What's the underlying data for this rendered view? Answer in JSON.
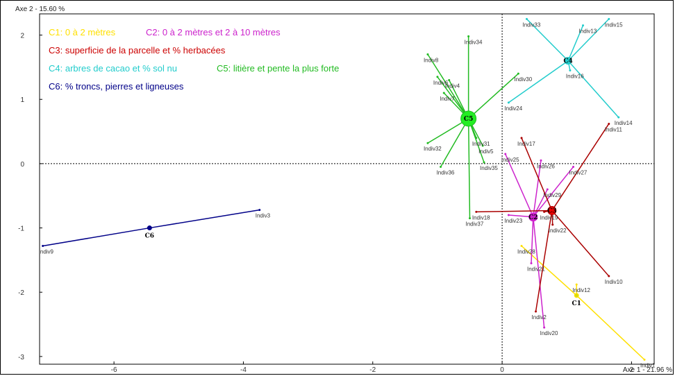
{
  "chart_data": {
    "type": "scatter",
    "xlabel": "Axe 1 - 21.96 %",
    "ylabel": "Axe 2 - 15.60 %",
    "xlim": [
      -7.15,
      2.35
    ],
    "ylim": [
      -3.12,
      2.33
    ],
    "x_ticks": [
      {
        "value": -6,
        "label": "-6"
      },
      {
        "value": -4,
        "label": "-4"
      },
      {
        "value": -2,
        "label": "-2"
      },
      {
        "value": 0,
        "label": "0"
      },
      {
        "value": 2,
        "label": "2"
      }
    ],
    "y_ticks": [
      {
        "value": 2,
        "label": "2"
      },
      {
        "value": 1,
        "label": "1"
      },
      {
        "value": 0,
        "label": "0"
      },
      {
        "value": -1,
        "label": "-1"
      },
      {
        "value": -2,
        "label": "-2"
      },
      {
        "value": -3,
        "label": "-3"
      }
    ],
    "legend": [
      {
        "text": "C1: 0 à 2 mètres",
        "color": "#ffe000"
      },
      {
        "text": "C2: 0 à 2 mètres et 2 à 10 mètres",
        "color": "#cc22cc"
      },
      {
        "text": "C3: superficie de la parcelle et % herbacées",
        "color": "#cc0000"
      },
      {
        "text": "C4: arbres de cacao et % sol nu",
        "color": "#22cccc"
      },
      {
        "text": "C5: litière et pente la plus forte",
        "color": "#22bb22"
      },
      {
        "text": "C6: % troncs, pierres et ligneuses",
        "color": "#000088"
      }
    ],
    "groups": [
      {
        "name": "C1",
        "color": "#ffe000",
        "centroid": [
          1.15,
          -2.05
        ],
        "dot_color": "#dddd00",
        "dot_size": 3,
        "members": [
          {
            "label": "Indiv1",
            "x": 2.2,
            "y": -3.05
          },
          {
            "label": "Indiv12",
            "x": 1.15,
            "y": -1.88
          },
          {
            "label": "Indiv28",
            "x": 0.3,
            "y": -1.28
          }
        ]
      },
      {
        "name": "C2",
        "color": "#cc22cc",
        "centroid": [
          0.48,
          -0.83
        ],
        "dot_color": "#cc22cc",
        "dot_size": 6,
        "members": [
          {
            "label": "Indiv20",
            "x": 0.65,
            "y": -2.55
          },
          {
            "label": "Indiv21",
            "x": 0.45,
            "y": -1.55
          },
          {
            "label": "Indiv23",
            "x": 0.1,
            "y": -0.8
          },
          {
            "label": "Indiv25",
            "x": 0.05,
            "y": 0.15
          },
          {
            "label": "Indiv26",
            "x": 0.6,
            "y": 0.05
          },
          {
            "label": "Indiv27",
            "x": 1.1,
            "y": -0.05
          },
          {
            "label": "Indiv29",
            "x": 0.7,
            "y": -0.4
          }
        ]
      },
      {
        "name": "C3",
        "color": "#aa0000",
        "centroid": [
          0.77,
          -0.73
        ],
        "dot_color": "#ee0000",
        "dot_size": 6,
        "members": [
          {
            "label": "Indiv2",
            "x": 0.52,
            "y": -2.3
          },
          {
            "label": "Indiv10",
            "x": 1.65,
            "y": -1.75
          },
          {
            "label": "Indiv11",
            "x": 1.65,
            "y": 0.62
          },
          {
            "label": "Indiv17",
            "x": 0.3,
            "y": 0.4
          },
          {
            "label": "Indiv18",
            "x": -0.4,
            "y": -0.75
          },
          {
            "label": "Indiv19",
            "x": 0.65,
            "y": -0.75
          },
          {
            "label": "Indiv22",
            "x": 0.78,
            "y": -0.95
          }
        ]
      },
      {
        "name": "C4",
        "color": "#22cccc",
        "centroid": [
          1.02,
          1.6
        ],
        "dot_color": "#22cccc",
        "dot_size": 5,
        "members": [
          {
            "label": "Indiv13",
            "x": 1.25,
            "y": 2.15
          },
          {
            "label": "Indiv14",
            "x": 1.8,
            "y": 0.72
          },
          {
            "label": "Indiv15",
            "x": 1.65,
            "y": 2.25
          },
          {
            "label": "Indiv16",
            "x": 1.05,
            "y": 1.45
          },
          {
            "label": "Indiv24",
            "x": 0.1,
            "y": 0.95
          },
          {
            "label": "Indiv33",
            "x": 0.38,
            "y": 2.25
          }
        ]
      },
      {
        "name": "C5",
        "color": "#22bb22",
        "centroid": [
          -0.52,
          0.7
        ],
        "dot_color": "#22ee22",
        "dot_size": 11,
        "members": [
          {
            "label": "Indiv4",
            "x": -0.82,
            "y": 1.3
          },
          {
            "label": "Indiv5",
            "x": -0.3,
            "y": 0.28
          },
          {
            "label": "Indiv6",
            "x": -1.0,
            "y": 1.35
          },
          {
            "label": "Indiv7",
            "x": -0.9,
            "y": 1.1
          },
          {
            "label": "Indiv8",
            "x": -1.15,
            "y": 1.7
          },
          {
            "label": "Indiv30",
            "x": 0.25,
            "y": 1.4
          },
          {
            "label": "Indiv31",
            "x": -0.4,
            "y": 0.4
          },
          {
            "label": "Indiv32",
            "x": -1.15,
            "y": 0.32
          },
          {
            "label": "Indiv34",
            "x": -0.52,
            "y": 1.98
          },
          {
            "label": "Indiv35",
            "x": -0.28,
            "y": 0.02
          },
          {
            "label": "Indiv36",
            "x": -0.95,
            "y": -0.05
          },
          {
            "label": "Indiv37",
            "x": -0.5,
            "y": -0.85
          }
        ]
      },
      {
        "name": "C6",
        "color": "#000088",
        "centroid": [
          -5.45,
          -1.0
        ],
        "dot_color": "#000088",
        "dot_size": 3,
        "members": [
          {
            "label": "Indiv3",
            "x": -3.75,
            "y": -0.72
          },
          {
            "label": "Indiv9",
            "x": -7.1,
            "y": -1.28
          }
        ]
      }
    ]
  }
}
